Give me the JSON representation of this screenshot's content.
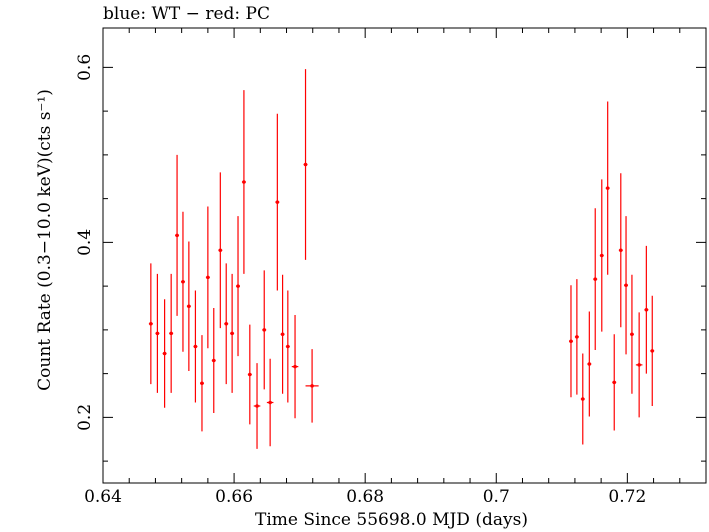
{
  "chart_data": {
    "type": "scatter",
    "title": "blue: WT − red: PC",
    "xlabel": "Time Since 55698.0 MJD (days)",
    "ylabel": "Count Rate (0.3−10.0 keV)(cts s⁻¹)",
    "xlim": [
      0.64,
      0.732
    ],
    "ylim": [
      0.125,
      0.645
    ],
    "xticks": [
      0.64,
      0.66,
      0.68,
      0.7,
      0.72
    ],
    "xtick_labels": [
      "0.64",
      "0.66",
      "0.68",
      "0.7",
      "0.72"
    ],
    "yticks": [
      0.2,
      0.4,
      0.6
    ],
    "ytick_labels": [
      "0.2",
      "0.4",
      "0.6"
    ],
    "series": [
      {
        "name": "PC",
        "color": "#ff0000",
        "points": [
          {
            "x": 0.6473,
            "y": 0.307,
            "yerr": 0.069
          },
          {
            "x": 0.6483,
            "y": 0.296,
            "yerr": 0.068
          },
          {
            "x": 0.6494,
            "y": 0.273,
            "yerr": 0.062
          },
          {
            "x": 0.6504,
            "y": 0.296,
            "yerr": 0.068
          },
          {
            "x": 0.6513,
            "y": 0.408,
            "yerr": 0.092
          },
          {
            "x": 0.6522,
            "y": 0.355,
            "yerr": 0.08
          },
          {
            "x": 0.6531,
            "y": 0.327,
            "yerr": 0.074
          },
          {
            "x": 0.6541,
            "y": 0.281,
            "yerr": 0.064
          },
          {
            "x": 0.6551,
            "y": 0.239,
            "yerr": 0.055
          },
          {
            "x": 0.656,
            "y": 0.36,
            "yerr": 0.081
          },
          {
            "x": 0.6569,
            "y": 0.265,
            "yerr": 0.06
          },
          {
            "x": 0.6579,
            "y": 0.391,
            "yerr": 0.089
          },
          {
            "x": 0.6588,
            "y": 0.307,
            "yerr": 0.069
          },
          {
            "x": 0.6597,
            "y": 0.296,
            "yerr": 0.068
          },
          {
            "x": 0.6606,
            "y": 0.35,
            "yerr": 0.08
          },
          {
            "x": 0.6615,
            "y": 0.469,
            "yerr": 0.105
          },
          {
            "x": 0.6624,
            "y": 0.249,
            "yerr": 0.057
          },
          {
            "x": 0.6635,
            "y": 0.213,
            "yerr": 0.049,
            "xerr": 0.0005
          },
          {
            "x": 0.6646,
            "y": 0.3,
            "yerr": 0.068
          },
          {
            "x": 0.6655,
            "y": 0.217,
            "yerr": 0.05,
            "xerr": 0.0005
          },
          {
            "x": 0.6666,
            "y": 0.446,
            "yerr": 0.101
          },
          {
            "x": 0.6674,
            "y": 0.295,
            "yerr": 0.068
          },
          {
            "x": 0.6682,
            "y": 0.281,
            "yerr": 0.064
          },
          {
            "x": 0.6693,
            "y": 0.258,
            "yerr": 0.059,
            "xerr": 0.0005
          },
          {
            "x": 0.6709,
            "y": 0.489,
            "yerr": 0.109
          },
          {
            "x": 0.6719,
            "y": 0.236,
            "yerr": 0.042,
            "xerr": 0.001
          },
          {
            "x": 0.7114,
            "y": 0.287,
            "yerr": 0.064
          },
          {
            "x": 0.7123,
            "y": 0.292,
            "yerr": 0.066
          },
          {
            "x": 0.7132,
            "y": 0.221,
            "yerr": 0.052
          },
          {
            "x": 0.7142,
            "y": 0.261,
            "yerr": 0.06
          },
          {
            "x": 0.7151,
            "y": 0.358,
            "yerr": 0.081
          },
          {
            "x": 0.7161,
            "y": 0.385,
            "yerr": 0.087
          },
          {
            "x": 0.717,
            "y": 0.462,
            "yerr": 0.099
          },
          {
            "x": 0.718,
            "y": 0.24,
            "yerr": 0.055
          },
          {
            "x": 0.719,
            "y": 0.391,
            "yerr": 0.088
          },
          {
            "x": 0.7198,
            "y": 0.351,
            "yerr": 0.079
          },
          {
            "x": 0.7207,
            "y": 0.295,
            "yerr": 0.068
          },
          {
            "x": 0.7218,
            "y": 0.26,
            "yerr": 0.06,
            "xerr": 0.0005
          },
          {
            "x": 0.7229,
            "y": 0.323,
            "yerr": 0.073
          },
          {
            "x": 0.7238,
            "y": 0.276,
            "yerr": 0.063
          }
        ]
      }
    ],
    "grid": false
  }
}
